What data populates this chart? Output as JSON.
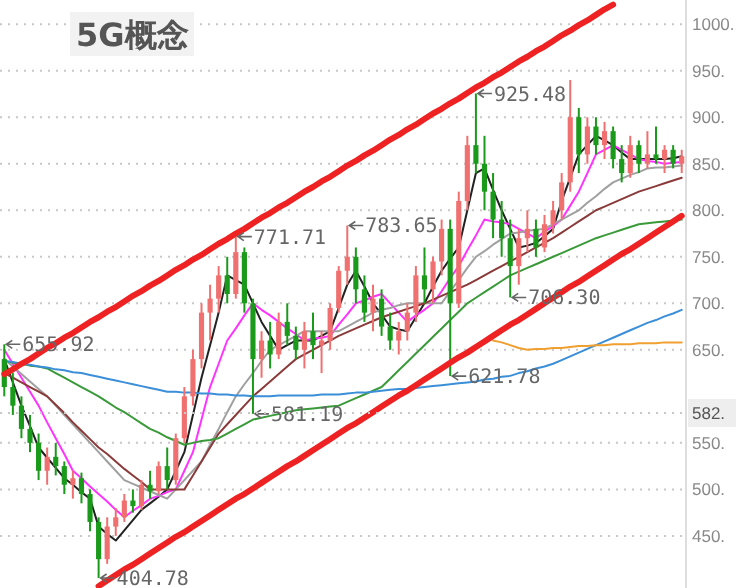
{
  "chart_data": {
    "type": "candlestick",
    "title": "5G概念",
    "ylim": [
      394,
      1026
    ],
    "yticks": [
      {
        "value": 450,
        "label": "450."
      },
      {
        "value": 500,
        "label": "500."
      },
      {
        "value": 550,
        "label": "550."
      },
      {
        "value": 650,
        "label": "650."
      },
      {
        "value": 700,
        "label": "700."
      },
      {
        "value": 750,
        "label": "750."
      },
      {
        "value": 800,
        "label": "800."
      },
      {
        "value": 850,
        "label": "850."
      },
      {
        "value": 900,
        "label": "900."
      },
      {
        "value": 950,
        "label": "950."
      },
      {
        "value": 1000,
        "label": "1000."
      }
    ],
    "grid": "y",
    "tick_labels": "y",
    "ref_lines": [
      {
        "axis": "y",
        "value": 582,
        "label": "582.",
        "color": "#c8c8c8",
        "line_style": "dotted"
      }
    ],
    "categories": [
      null,
      null,
      null,
      null,
      null,
      null,
      null,
      null,
      null,
      null,
      null,
      null,
      null,
      null,
      null,
      null,
      null,
      null,
      null,
      null,
      null,
      null,
      null,
      null,
      null,
      null,
      null,
      null,
      null,
      null,
      null,
      null,
      null,
      null,
      null,
      null,
      null,
      null,
      null,
      null,
      null,
      null,
      null,
      null,
      null,
      null,
      null,
      null,
      null,
      null,
      null,
      null,
      null,
      null,
      null,
      null,
      null,
      null,
      null,
      null,
      null,
      null,
      null,
      null,
      null,
      null,
      null,
      null,
      null,
      null,
      null,
      null,
      null,
      null,
      null,
      null,
      null,
      null,
      null,
      null
    ],
    "ohlc": [
      [
        640,
        655.92,
        600,
        610
      ],
      [
        610,
        625,
        580,
        590
      ],
      [
        590,
        600,
        555,
        565
      ],
      [
        565,
        580,
        540,
        550
      ],
      [
        550,
        560,
        510,
        520
      ],
      [
        520,
        545,
        505,
        535
      ],
      [
        535,
        550,
        515,
        525
      ],
      [
        525,
        530,
        495,
        505
      ],
      [
        505,
        520,
        490,
        512
      ],
      [
        512,
        518,
        485,
        495
      ],
      [
        495,
        500,
        455,
        465
      ],
      [
        465,
        470,
        404.78,
        425
      ],
      [
        425,
        470,
        420,
        460
      ],
      [
        460,
        480,
        450,
        470
      ],
      [
        470,
        495,
        465,
        488
      ],
      [
        488,
        500,
        475,
        482
      ],
      [
        482,
        510,
        478,
        505
      ],
      [
        505,
        520,
        490,
        498
      ],
      [
        498,
        530,
        495,
        525
      ],
      [
        525,
        545,
        500,
        510
      ],
      [
        510,
        560,
        505,
        555
      ],
      [
        555,
        610,
        550,
        600
      ],
      [
        600,
        650,
        590,
        640
      ],
      [
        640,
        700,
        630,
        690
      ],
      [
        690,
        720,
        660,
        705
      ],
      [
        705,
        740,
        690,
        730
      ],
      [
        730,
        750,
        700,
        710
      ],
      [
        710,
        771.71,
        705,
        755
      ],
      [
        755,
        760,
        690,
        700
      ],
      [
        700,
        705,
        581.19,
        640
      ],
      [
        640,
        670,
        620,
        660
      ],
      [
        660,
        680,
        630,
        645
      ],
      [
        645,
        690,
        640,
        680
      ],
      [
        680,
        700,
        655,
        665
      ],
      [
        665,
        675,
        640,
        650
      ],
      [
        650,
        680,
        630,
        670
      ],
      [
        670,
        690,
        640,
        655
      ],
      [
        655,
        670,
        625,
        660
      ],
      [
        660,
        700,
        650,
        695
      ],
      [
        695,
        740,
        690,
        735
      ],
      [
        735,
        783.65,
        720,
        750
      ],
      [
        750,
        760,
        700,
        715
      ],
      [
        715,
        730,
        680,
        690
      ],
      [
        690,
        720,
        670,
        705
      ],
      [
        705,
        715,
        665,
        675
      ],
      [
        675,
        690,
        650,
        660
      ],
      [
        660,
        680,
        645,
        670
      ],
      [
        670,
        700,
        660,
        690
      ],
      [
        690,
        740,
        680,
        730
      ],
      [
        730,
        760,
        700,
        715
      ],
      [
        715,
        750,
        700,
        745
      ],
      [
        745,
        790,
        730,
        780
      ],
      [
        780,
        790,
        621.78,
        700
      ],
      [
        700,
        820,
        695,
        810
      ],
      [
        810,
        880,
        800,
        870
      ],
      [
        870,
        925.48,
        840,
        850
      ],
      [
        850,
        880,
        800,
        820
      ],
      [
        820,
        840,
        770,
        790
      ],
      [
        790,
        810,
        750,
        770
      ],
      [
        770,
        790,
        706.3,
        740
      ],
      [
        740,
        780,
        720,
        770
      ],
      [
        770,
        800,
        755,
        780
      ],
      [
        780,
        790,
        750,
        760
      ],
      [
        760,
        795,
        755,
        785
      ],
      [
        785,
        810,
        775,
        800
      ],
      [
        800,
        840,
        790,
        830
      ],
      [
        830,
        940,
        820,
        900
      ],
      [
        900,
        910,
        840,
        860
      ],
      [
        860,
        900,
        850,
        890
      ],
      [
        890,
        900,
        860,
        870
      ],
      [
        870,
        895,
        855,
        885
      ],
      [
        885,
        890,
        845,
        855
      ],
      [
        855,
        870,
        830,
        840
      ],
      [
        840,
        880,
        835,
        870
      ],
      [
        870,
        875,
        840,
        850
      ],
      [
        850,
        885,
        845,
        860
      ],
      [
        860,
        890,
        850,
        855
      ],
      [
        855,
        870,
        840,
        865
      ],
      [
        865,
        870,
        845,
        850
      ],
      [
        850,
        865,
        840,
        858
      ]
    ],
    "colors": [
      "#1a9a1a",
      "#1a9a1a",
      "#1a9a1a",
      "#1a9a1a",
      "#1a9a1a",
      "#f07070",
      "#1a9a1a",
      "#1a9a1a",
      "#f07070",
      "#1a9a1a",
      "#1a9a1a",
      "#1a9a1a",
      "#f07070",
      "#f07070",
      "#f07070",
      "#1a9a1a",
      "#f07070",
      "#1a9a1a",
      "#f07070",
      "#1a9a1a",
      "#f07070",
      "#f07070",
      "#f07070",
      "#f07070",
      "#f07070",
      "#f07070",
      "#1a9a1a",
      "#f07070",
      "#1a9a1a",
      "#1a9a1a",
      "#f07070",
      "#1a9a1a",
      "#f07070",
      "#1a9a1a",
      "#1a9a1a",
      "#f07070",
      "#1a9a1a",
      "#f07070",
      "#f07070",
      "#f07070",
      "#f07070",
      "#1a9a1a",
      "#1a9a1a",
      "#f07070",
      "#1a9a1a",
      "#1a9a1a",
      "#f07070",
      "#f07070",
      "#f07070",
      "#1a9a1a",
      "#f07070",
      "#f07070",
      "#1a9a1a",
      "#f07070",
      "#f07070",
      "#1a9a1a",
      "#1a9a1a",
      "#1a9a1a",
      "#1a9a1a",
      "#1a9a1a",
      "#f07070",
      "#f07070",
      "#1a9a1a",
      "#f07070",
      "#f07070",
      "#f07070",
      "#f07070",
      "#1a9a1a",
      "#f07070",
      "#1a9a1a",
      "#f07070",
      "#1a9a1a",
      "#1a9a1a",
      "#f07070",
      "#1a9a1a",
      "#f07070",
      "#1a9a1a",
      "#f07070",
      "#1a9a1a",
      "#f07070"
    ],
    "series": [
      {
        "type": "line",
        "color": "#ee2222",
        "values": [
          624,
          629,
          635,
          640,
          646,
          652,
          657,
          663,
          668,
          674,
          680,
          685,
          691,
          696,
          702,
          708,
          713,
          719,
          724,
          730,
          736,
          741,
          747,
          752,
          758,
          764,
          769,
          775,
          780,
          786,
          792,
          797,
          803,
          808,
          814,
          820,
          825,
          831,
          836,
          842,
          848,
          853,
          859,
          864,
          870,
          876,
          881,
          887,
          892,
          898,
          904,
          909,
          915,
          920,
          926,
          932,
          937,
          943,
          948,
          954,
          960,
          965,
          971,
          976,
          982,
          988,
          993,
          999,
          1004,
          1010,
          1016,
          1021,
          null,
          null,
          null,
          null,
          null,
          null,
          null,
          null
        ]
      },
      {
        "type": "line",
        "color": "#ee2222",
        "values": [
          null,
          null,
          null,
          null,
          null,
          null,
          null,
          null,
          null,
          null,
          null,
          396,
          402,
          408,
          414,
          419,
          425,
          431,
          437,
          443,
          449,
          454,
          460,
          466,
          472,
          478,
          484,
          490,
          495,
          501,
          507,
          513,
          519,
          525,
          530,
          536,
          542,
          548,
          554,
          560,
          566,
          571,
          577,
          583,
          589,
          595,
          601,
          606,
          612,
          618,
          624,
          630,
          636,
          642,
          647,
          653,
          659,
          665,
          671,
          677,
          682,
          688,
          694,
          700,
          706,
          712,
          718,
          723,
          729,
          735,
          741,
          747,
          753,
          758,
          764,
          770,
          776,
          782,
          788,
          794
        ]
      },
      {
        "type": "line",
        "color": "#222222",
        "values": [
          640,
          615,
          590,
          568,
          545,
          534,
          523,
          512,
          505,
          497,
          490,
          460,
          452,
          445,
          456,
          467,
          478,
          485,
          492,
          500,
          520,
          540,
          580,
          620,
          655,
          690,
          730,
          725,
          720,
          700,
          680,
          665,
          650,
          655,
          660,
          660,
          660,
          665,
          670,
          695,
          720,
          735,
          718,
          700,
          688,
          675,
          672,
          670,
          685,
          700,
          718,
          735,
          748,
          760,
          800,
          840,
          845,
          822,
          800,
          780,
          760,
          762,
          765,
          772,
          780,
          810,
          835,
          860,
          870,
          880,
          875,
          870,
          862,
          855,
          855,
          855,
          855,
          855,
          856,
          858
        ]
      },
      {
        "type": "line",
        "color": "#ff33ff",
        "values": [
          650,
          635,
          620,
          605,
          590,
          572,
          555,
          538,
          520,
          512,
          503,
          495,
          487,
          478,
          470,
          477,
          483,
          490,
          493,
          497,
          500,
          520,
          540,
          575,
          610,
          635,
          660,
          673,
          687,
          700,
          693,
          687,
          680,
          673,
          667,
          660,
          662,
          663,
          665,
          677,
          688,
          700,
          703,
          707,
          710,
          700,
          690,
          680,
          687,
          693,
          700,
          713,
          727,
          740,
          757,
          773,
          790,
          788,
          787,
          785,
          780,
          775,
          770,
          777,
          783,
          790,
          805,
          820,
          840,
          860,
          865,
          870,
          865,
          860,
          855,
          853,
          852,
          850,
          851,
          852
        ]
      },
      {
        "type": "line",
        "color": "#a0a0a0",
        "values": [
          640,
          632,
          624,
          616,
          608,
          600,
          590,
          580,
          570,
          560,
          550,
          540,
          530,
          520,
          510,
          506,
          502,
          498,
          494,
          490,
          500,
          510,
          520,
          530,
          548,
          565,
          583,
          600,
          613,
          625,
          638,
          650,
          655,
          660,
          665,
          670,
          670,
          670,
          670,
          670,
          675,
          680,
          685,
          690,
          693,
          695,
          698,
          700,
          700,
          700,
          700,
          700,
          713,
          725,
          738,
          750,
          756,
          763,
          769,
          775,
          776,
          778,
          779,
          780,
          785,
          790,
          795,
          800,
          808,
          815,
          823,
          830,
          834,
          838,
          841,
          845,
          846,
          846,
          847,
          848
        ]
      },
      {
        "type": "line",
        "color": "#8b3a3a",
        "values": [
          625,
          620,
          615,
          610,
          605,
          600,
          591,
          582,
          572,
          563,
          554,
          545,
          538,
          530,
          522,
          515,
          508,
          500,
          500,
          500,
          500,
          500,
          515,
          530,
          545,
          560,
          570,
          580,
          590,
          600,
          608,
          616,
          624,
          632,
          640,
          645,
          650,
          655,
          660,
          665,
          669,
          673,
          677,
          681,
          685,
          688,
          691,
          694,
          697,
          700,
          704,
          708,
          712,
          716,
          720,
          725,
          730,
          735,
          740,
          745,
          750,
          755,
          760,
          765,
          770,
          776,
          782,
          788,
          794,
          800,
          804,
          808,
          812,
          816,
          820,
          823,
          826,
          829,
          832,
          835
        ]
      },
      {
        "type": "line",
        "color": "#3a9a3a",
        "values": [
          638,
          636,
          635,
          633,
          632,
          630,
          625,
          620,
          615,
          610,
          605,
          600,
          594,
          588,
          583,
          577,
          571,
          565,
          561,
          556,
          552,
          548,
          550,
          552,
          553,
          555,
          560,
          565,
          570,
          575,
          577,
          579,
          581,
          583,
          585,
          586,
          587,
          588,
          589,
          590,
          594,
          598,
          602,
          606,
          610,
          619,
          628,
          637,
          646,
          655,
          664,
          673,
          682,
          691,
          700,
          706,
          712,
          718,
          724,
          730,
          734,
          738,
          742,
          746,
          750,
          754,
          758,
          762,
          766,
          770,
          773,
          776,
          779,
          782,
          785,
          786,
          787,
          788,
          789,
          790
        ]
      },
      {
        "type": "line",
        "color": "#3a8fd8",
        "values": [
          638,
          637,
          635,
          634,
          632,
          631,
          629,
          628,
          626,
          625,
          623,
          621,
          619,
          617,
          615,
          613,
          611,
          609,
          607,
          605,
          605,
          604,
          604,
          603,
          603,
          602,
          602,
          601,
          601,
          600,
          600,
          600,
          601,
          601,
          601,
          601,
          601,
          602,
          602,
          602,
          603,
          604,
          604,
          605,
          606,
          607,
          608,
          608,
          609,
          610,
          611,
          612,
          613,
          614,
          615,
          616,
          618,
          619,
          621,
          622,
          625,
          627,
          630,
          632,
          635,
          639,
          643,
          647,
          651,
          655,
          659,
          663,
          667,
          671,
          675,
          679,
          682,
          686,
          689,
          693
        ]
      },
      {
        "type": "line",
        "color": "#f0a030",
        "values": [
          null,
          null,
          null,
          null,
          null,
          null,
          null,
          null,
          null,
          null,
          null,
          null,
          null,
          null,
          null,
          null,
          null,
          null,
          null,
          null,
          null,
          null,
          null,
          null,
          null,
          null,
          null,
          null,
          null,
          null,
          null,
          null,
          null,
          null,
          null,
          null,
          null,
          null,
          null,
          null,
          null,
          null,
          null,
          null,
          null,
          null,
          null,
          null,
          null,
          null,
          null,
          null,
          null,
          null,
          null,
          null,
          null,
          660,
          658,
          655,
          652,
          650,
          651,
          651,
          652,
          652,
          653,
          654,
          654,
          655,
          655,
          656,
          656,
          656,
          657,
          657,
          657,
          658,
          658,
          658
        ]
      }
    ],
    "annotations": [
      {
        "text": "655.92",
        "y": 655.92
      },
      "771.71",
      "783.65",
      "925.48",
      {
        "text": "706.30",
        "y": 706.3
      },
      {
        "text": "621.78",
        "y": 621.78
      },
      {
        "text": "581.19",
        "y": 581.19
      },
      "404.78"
    ]
  }
}
